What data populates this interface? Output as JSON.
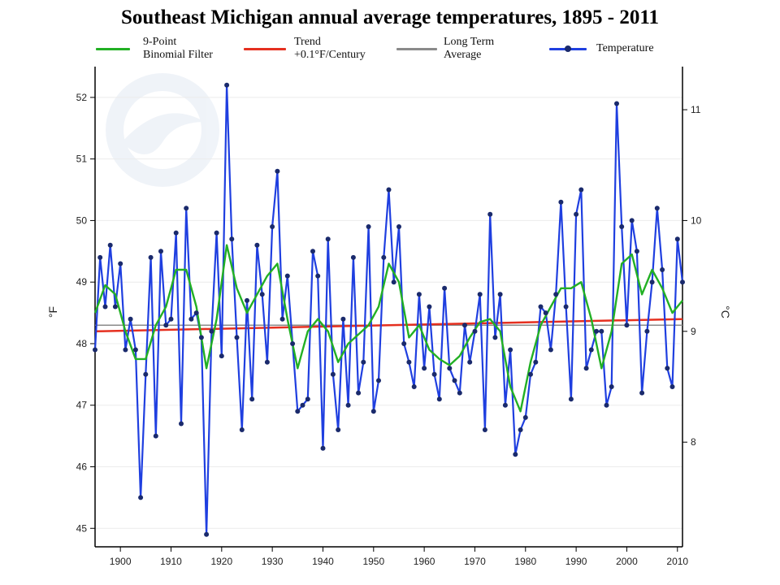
{
  "chart_data": {
    "type": "line",
    "title": "Southeast Michigan annual average temperatures, 1895 - 2011",
    "ylabel_left": "°F",
    "ylabel_right": "°C",
    "xlim": [
      1895,
      2011
    ],
    "ylim_f": [
      44.7,
      52.5
    ],
    "x_ticks": [
      "1900",
      "1910",
      "1920",
      "1930",
      "1940",
      "1950",
      "1960",
      "1970",
      "1980",
      "1990",
      "2000",
      "2010"
    ],
    "y_ticks_f": [
      "45",
      "46",
      "47",
      "48",
      "49",
      "50",
      "51",
      "52"
    ],
    "y_ticks_c": [
      "8",
      "9",
      "10",
      "11"
    ],
    "grid": true,
    "legend_position": "top",
    "legend": [
      {
        "lines": [
          "9-Point",
          "Binomial Filter"
        ],
        "color": "#22b024",
        "marker": false
      },
      {
        "lines": [
          "Trend",
          "+0.1°F/Century"
        ],
        "color": "#e53020",
        "marker": false
      },
      {
        "lines": [
          "Long Term",
          "Average"
        ],
        "color": "#8a8a8a",
        "marker": false
      },
      {
        "lines": [
          "Temperature"
        ],
        "color": "#1f3fe0",
        "marker": true
      }
    ],
    "temperature": {
      "x": [
        1895,
        1896,
        1897,
        1898,
        1899,
        1900,
        1901,
        1902,
        1903,
        1904,
        1905,
        1906,
        1907,
        1908,
        1909,
        1910,
        1911,
        1912,
        1913,
        1914,
        1915,
        1916,
        1917,
        1918,
        1919,
        1920,
        1921,
        1922,
        1923,
        1924,
        1925,
        1926,
        1927,
        1928,
        1929,
        1930,
        1931,
        1932,
        1933,
        1934,
        1935,
        1936,
        1937,
        1938,
        1939,
        1940,
        1941,
        1942,
        1943,
        1944,
        1945,
        1946,
        1947,
        1948,
        1949,
        1950,
        1951,
        1952,
        1953,
        1954,
        1955,
        1956,
        1957,
        1958,
        1959,
        1960,
        1961,
        1962,
        1963,
        1964,
        1965,
        1966,
        1967,
        1968,
        1969,
        1970,
        1971,
        1972,
        1973,
        1974,
        1975,
        1976,
        1977,
        1978,
        1979,
        1980,
        1981,
        1982,
        1983,
        1984,
        1985,
        1986,
        1987,
        1988,
        1989,
        1990,
        1991,
        1992,
        1993,
        1994,
        1995,
        1996,
        1997,
        1998,
        1999,
        2000,
        2001,
        2002,
        2003,
        2004,
        2005,
        2006,
        2007,
        2008,
        2009,
        2010,
        2011
      ],
      "values": [
        47.9,
        49.4,
        48.6,
        49.6,
        48.6,
        49.3,
        47.9,
        48.4,
        47.9,
        45.5,
        47.5,
        49.4,
        46.5,
        49.5,
        48.3,
        48.4,
        49.8,
        46.7,
        50.2,
        48.4,
        48.5,
        48.1,
        44.9,
        48.2,
        49.8,
        47.8,
        52.2,
        49.7,
        48.1,
        46.6,
        48.7,
        47.1,
        49.6,
        48.8,
        47.7,
        49.9,
        50.8,
        48.4,
        49.1,
        48.0,
        46.9,
        47.0,
        47.1,
        49.5,
        49.1,
        46.3,
        49.7,
        47.5,
        46.6,
        48.4,
        47.0,
        49.4,
        47.2,
        47.7,
        49.9,
        46.9,
        47.4,
        49.4,
        50.5,
        49.0,
        49.9,
        48.0,
        47.7,
        47.3,
        48.8,
        47.6,
        48.6,
        47.5,
        47.1,
        48.9,
        47.6,
        47.4,
        47.2,
        48.3,
        47.7,
        48.2,
        48.8,
        46.6,
        50.1,
        48.1,
        48.8,
        47.0,
        47.9,
        46.2,
        46.6,
        46.8,
        47.5,
        47.7,
        48.6,
        48.5,
        47.9,
        48.8,
        50.3,
        48.6,
        47.1,
        50.1,
        50.5,
        47.6,
        47.9,
        48.2,
        48.2,
        47.0,
        47.3,
        51.9,
        49.9,
        48.3,
        50.0,
        49.5,
        47.2,
        48.2,
        49.0,
        50.2,
        49.2,
        47.6,
        47.3,
        49.7,
        49.0
      ]
    },
    "filter": {
      "x": [
        1895,
        1897,
        1899,
        1901,
        1903,
        1905,
        1907,
        1909,
        1911,
        1913,
        1915,
        1917,
        1919,
        1921,
        1923,
        1925,
        1927,
        1929,
        1931,
        1933,
        1935,
        1937,
        1939,
        1941,
        1943,
        1945,
        1947,
        1949,
        1951,
        1953,
        1955,
        1957,
        1959,
        1961,
        1963,
        1965,
        1967,
        1969,
        1971,
        1973,
        1975,
        1977,
        1979,
        1981,
        1983,
        1985,
        1987,
        1989,
        1991,
        1993,
        1995,
        1997,
        1999,
        2001,
        2003,
        2005,
        2007,
        2009,
        2011
      ],
      "values": [
        48.5,
        48.95,
        48.8,
        48.2,
        47.75,
        47.75,
        48.3,
        48.6,
        49.2,
        49.2,
        48.6,
        47.6,
        48.4,
        49.6,
        48.9,
        48.5,
        48.8,
        49.1,
        49.3,
        48.4,
        47.6,
        48.2,
        48.4,
        48.2,
        47.7,
        48.0,
        48.15,
        48.3,
        48.6,
        49.3,
        49.0,
        48.1,
        48.3,
        47.9,
        47.75,
        47.65,
        47.8,
        48.1,
        48.35,
        48.4,
        48.2,
        47.3,
        46.9,
        47.7,
        48.3,
        48.6,
        48.9,
        48.9,
        49.0,
        48.4,
        47.6,
        48.2,
        49.3,
        49.45,
        48.8,
        49.2,
        48.9,
        48.5,
        48.7
      ]
    },
    "trend": {
      "x": [
        1895,
        2011
      ],
      "values": [
        48.2,
        48.4
      ]
    },
    "long_term_average": {
      "x": [
        1895,
        2011
      ],
      "values": [
        48.3,
        48.3
      ]
    }
  }
}
